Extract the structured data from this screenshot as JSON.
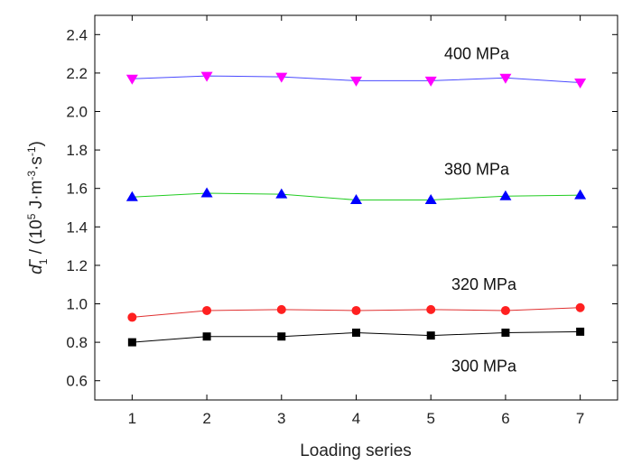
{
  "chart_data": {
    "type": "line",
    "xlabel": "Loading series",
    "ylabel": {
      "symbol": "d",
      "subscript": "1",
      "unit_prefix": " / (10",
      "exp1": "5",
      "unit_mid": " J·m",
      "exp2": "-3",
      "unit_mid2": "·s",
      "exp3": "-1",
      "unit_end": ")"
    },
    "xlim": [
      0.5,
      7.5
    ],
    "ylim": [
      0.5,
      2.5
    ],
    "xticks": [
      1,
      2,
      3,
      4,
      5,
      6,
      7
    ],
    "yticks": [
      0.6,
      0.8,
      1.0,
      1.2,
      1.4,
      1.6,
      1.8,
      2.0,
      2.2,
      2.4
    ],
    "x": [
      1,
      2,
      3,
      4,
      5,
      6,
      7
    ],
    "grid": false,
    "series": [
      {
        "name": "400 MPa",
        "color": "#ff00ff",
        "line_color": "#4a4aff",
        "marker": "triangle-down",
        "values": [
          2.17,
          2.185,
          2.18,
          2.16,
          2.16,
          2.175,
          2.15
        ]
      },
      {
        "name": "380 MPa",
        "color": "#0000ff",
        "line_color": "#22cc22",
        "marker": "triangle-up",
        "values": [
          1.555,
          1.575,
          1.57,
          1.54,
          1.54,
          1.56,
          1.565
        ]
      },
      {
        "name": "320 MPa",
        "color": "#ff2020",
        "line_color": "#e03030",
        "marker": "circle",
        "values": [
          0.93,
          0.965,
          0.97,
          0.965,
          0.97,
          0.965,
          0.98
        ]
      },
      {
        "name": "300 MPa",
        "color": "#000000",
        "line_color": "#000000",
        "marker": "square",
        "values": [
          0.8,
          0.83,
          0.83,
          0.85,
          0.835,
          0.85,
          0.855
        ]
      }
    ]
  }
}
